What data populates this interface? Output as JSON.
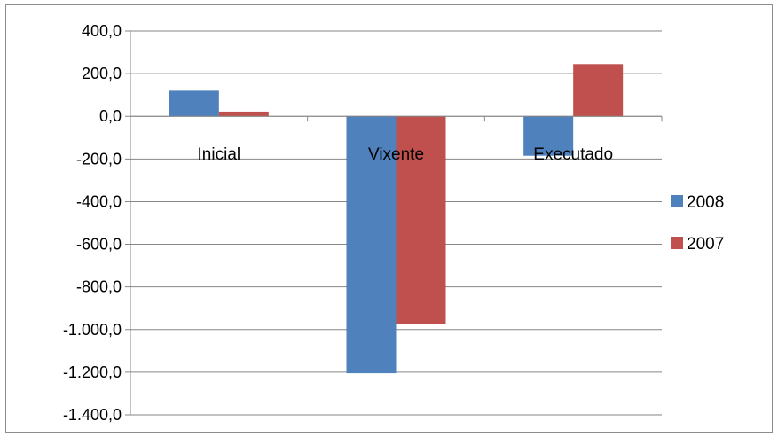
{
  "chart_data": {
    "type": "bar",
    "categories": [
      "Inicial",
      "Vixente",
      "Executado"
    ],
    "series": [
      {
        "name": "2008",
        "values": [
          120,
          -1205,
          -185
        ],
        "color": "#4f81bd"
      },
      {
        "name": "2007",
        "values": [
          22,
          -975,
          245
        ],
        "color": "#c0504d"
      }
    ],
    "ylim": [
      -1400,
      400
    ],
    "yticks": [
      400,
      200,
      0,
      -200,
      -400,
      -600,
      -800,
      -1000,
      -1200,
      -1400
    ],
    "ytick_labels": [
      "400,0",
      "200,0",
      "0,0",
      "-200,0",
      "-400,0",
      "-600,0",
      "-800,0",
      "-1.000,0",
      "-1.200,0",
      "-1.400,0"
    ],
    "grid": true,
    "legend": "right",
    "title": "",
    "xlabel": "",
    "ylabel": ""
  }
}
